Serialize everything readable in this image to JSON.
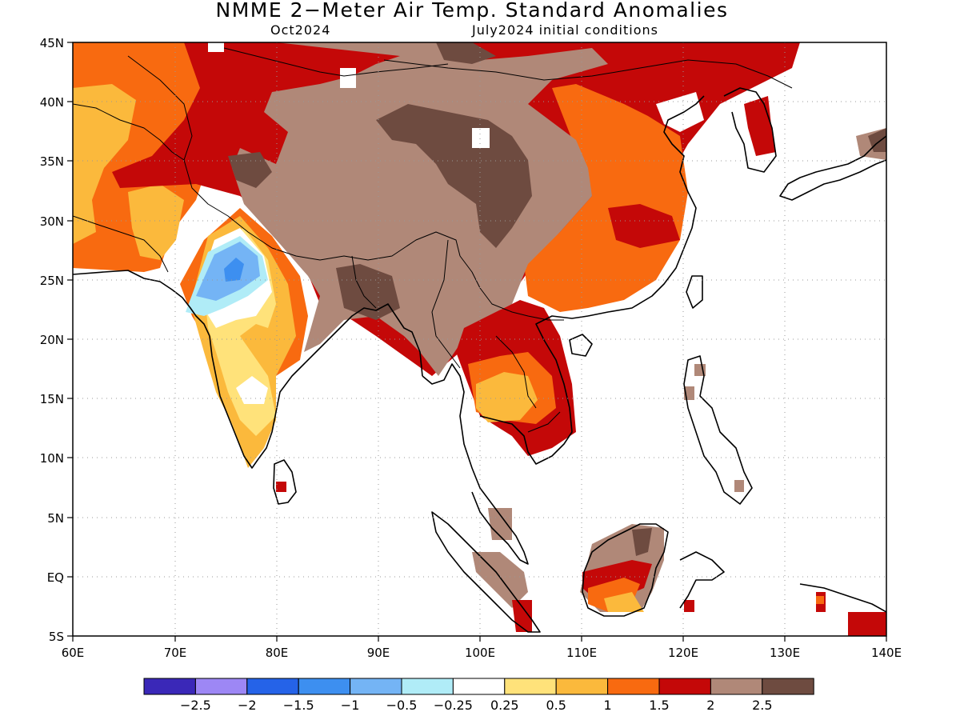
{
  "title": "NMME 2−Meter Air Temp. Standard Anomalies",
  "subtitle_left": "Oct2024",
  "subtitle_right": "July2024 initial conditions",
  "map": {
    "lon_range": [
      60,
      140
    ],
    "lat_range": [
      -5,
      45
    ],
    "gridlines": "dotted",
    "x_ticks": [
      "60E",
      "70E",
      "80E",
      "90E",
      "100E",
      "110E",
      "120E",
      "130E",
      "140E"
    ],
    "y_ticks": [
      "45N",
      "40N",
      "35N",
      "30N",
      "25N",
      "20N",
      "15N",
      "10N",
      "5N",
      "EQ",
      "5S"
    ]
  },
  "colorbar": {
    "colors": [
      "#3a28b8",
      "#9d87f5",
      "#2563e8",
      "#3d8ff0",
      "#74b4f5",
      "#b0ecf7",
      "#ffffff",
      "#ffe27a",
      "#fbb93c",
      "#f86a10",
      "#c40808",
      "#b08878",
      "#6e4b40"
    ],
    "labels": [
      "−2.5",
      "−2",
      "−1.5",
      "−1",
      "−0.5",
      "−0.25",
      "0.25",
      "0.5",
      "1",
      "1.5",
      "2",
      "2.5"
    ]
  },
  "regions": [
    {
      "name": "northwest-warm-anomaly",
      "level": "0.5-1.5"
    },
    {
      "name": "tibetan-plateau-anomaly",
      "level": "2-2.5+"
    },
    {
      "name": "east-china-anomaly",
      "level": "1-2"
    },
    {
      "name": "northwest-india-cool-anomaly",
      "level": "-1.5 to 0.25"
    },
    {
      "name": "borneo-anomaly",
      "level": "0.5-2.5"
    }
  ]
}
